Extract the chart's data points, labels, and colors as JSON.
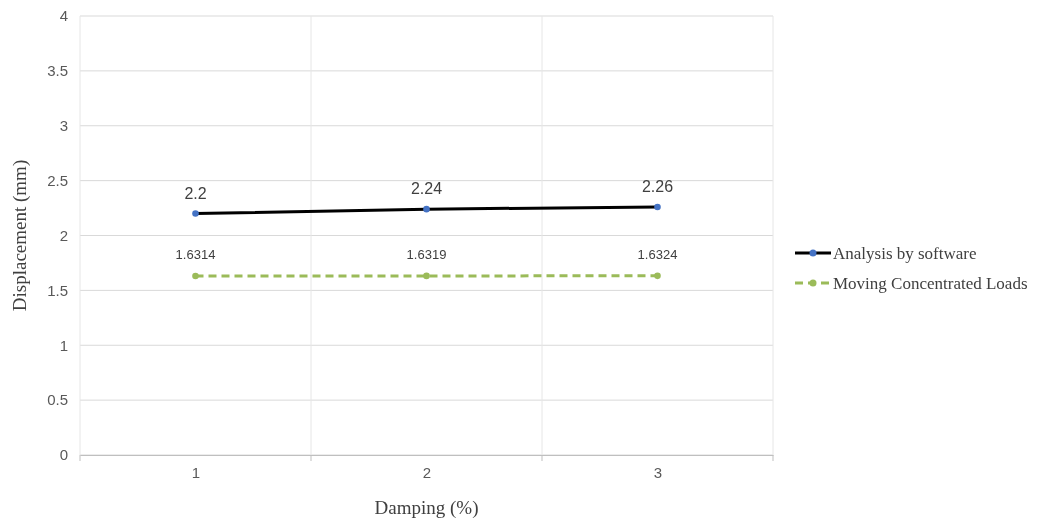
{
  "chart_data": {
    "type": "line",
    "xlabel": "Damping (%)",
    "ylabel": "Displacement (mm)",
    "categories": [
      "1",
      "2",
      "3"
    ],
    "series": [
      {
        "name": "Analysis by software",
        "color": "#000000",
        "values": [
          2.2,
          2.24,
          2.26
        ],
        "line_style": "solid"
      },
      {
        "name": "Moving Concentrated Loads",
        "color": "#9bbb59",
        "values": [
          1.6314,
          1.6319,
          1.6324
        ],
        "line_style": "dashed"
      }
    ],
    "ylim": [
      0,
      4
    ],
    "yticks": [
      0,
      0.5,
      1,
      1.5,
      2,
      2.5,
      3,
      3.5,
      4
    ],
    "grid": true,
    "legend": "right",
    "marker": "circle",
    "data_labels": true
  }
}
